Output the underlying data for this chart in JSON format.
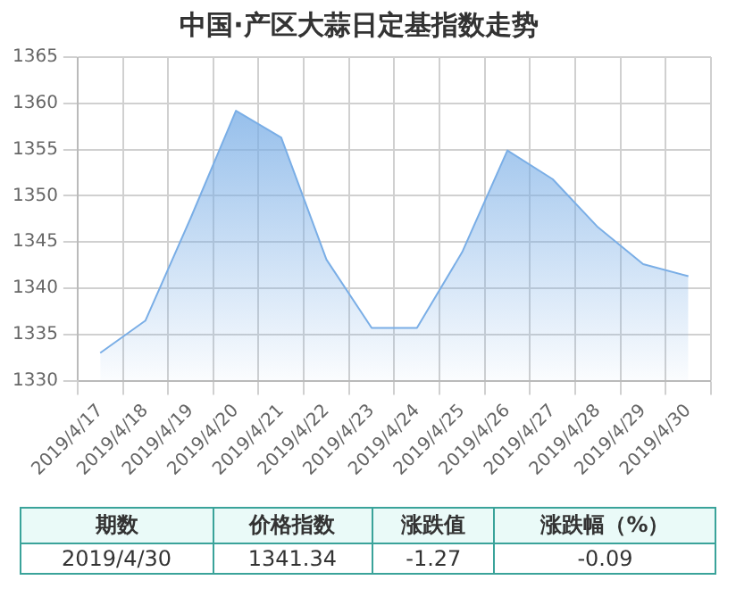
{
  "chart_data": {
    "type": "area",
    "title": "中国·产区大蒜日定基指数走势",
    "categories": [
      "2019/4/17",
      "2019/4/18",
      "2019/4/19",
      "2019/4/20",
      "2019/4/21",
      "2019/4/22",
      "2019/4/23",
      "2019/4/24",
      "2019/4/25",
      "2019/4/26",
      "2019/4/27",
      "2019/4/28",
      "2019/4/29",
      "2019/4/30"
    ],
    "series": [
      {
        "color": "#7aaee6",
        "values": [
          1333.0,
          1336.5,
          1347.6,
          1359.2,
          1356.3,
          1343.1,
          1335.7,
          1335.7,
          1343.9,
          1354.9,
          1351.8,
          1346.6,
          1342.6,
          1341.3
        ]
      }
    ],
    "ylim": [
      1330,
      1365
    ],
    "yticks": [
      1330,
      1335,
      1340,
      1345,
      1350,
      1355,
      1360,
      1365
    ],
    "grid": true,
    "legend": false,
    "marker": "none",
    "annotations": [
      "期数",
      "价格指数",
      "涨跌值",
      "涨跌幅（%）",
      "2019/4/30",
      "1341.34",
      "-1.27",
      "-0.09"
    ]
  }
}
